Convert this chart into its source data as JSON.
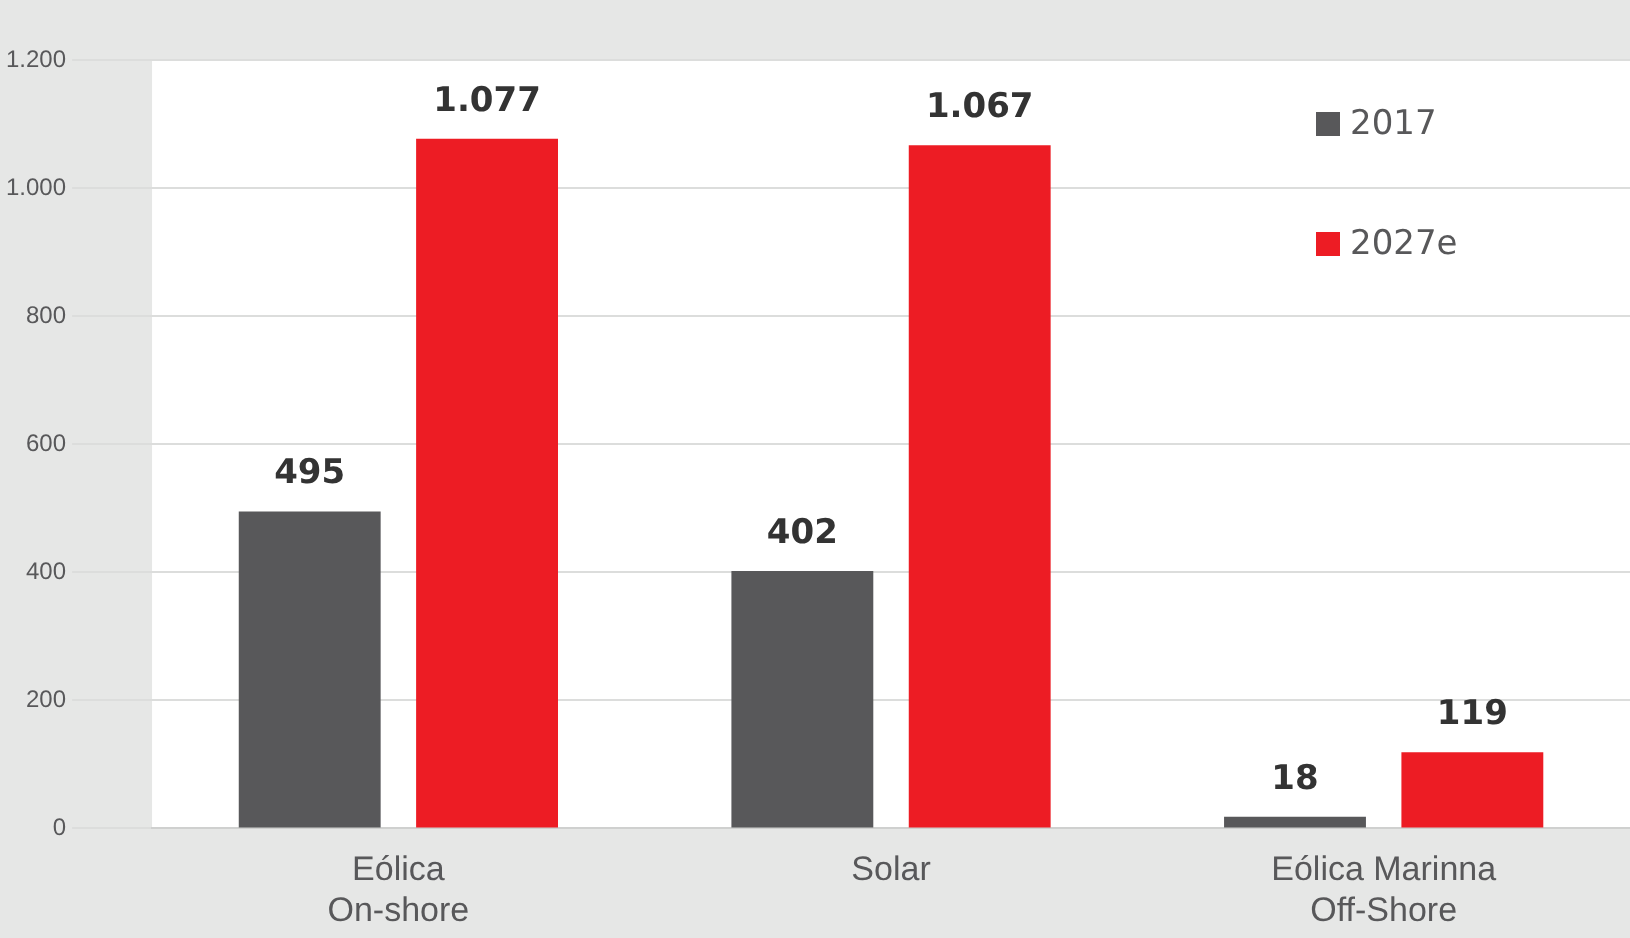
{
  "chart_data": {
    "type": "bar",
    "categories": [
      "Eólica On-shore",
      "Solar",
      "Eólica Marinna Off-Shore"
    ],
    "series": [
      {
        "name": "2017",
        "color": "#58585a",
        "values": [
          495,
          402,
          18
        ],
        "value_labels": [
          "495",
          "402",
          "18"
        ]
      },
      {
        "name": "2027e",
        "color": "#ed1c24",
        "values": [
          1077,
          1067,
          119
        ],
        "value_labels": [
          "1.077",
          "1.067",
          "119"
        ]
      }
    ],
    "ylim": [
      0,
      1200
    ],
    "yticks": [
      0,
      200,
      400,
      600,
      800,
      {
        "value": 1000,
        "label": "1.000"
      },
      {
        "value": 1200,
        "label": "1.200"
      }
    ],
    "grid": "y",
    "legend": "top right"
  }
}
